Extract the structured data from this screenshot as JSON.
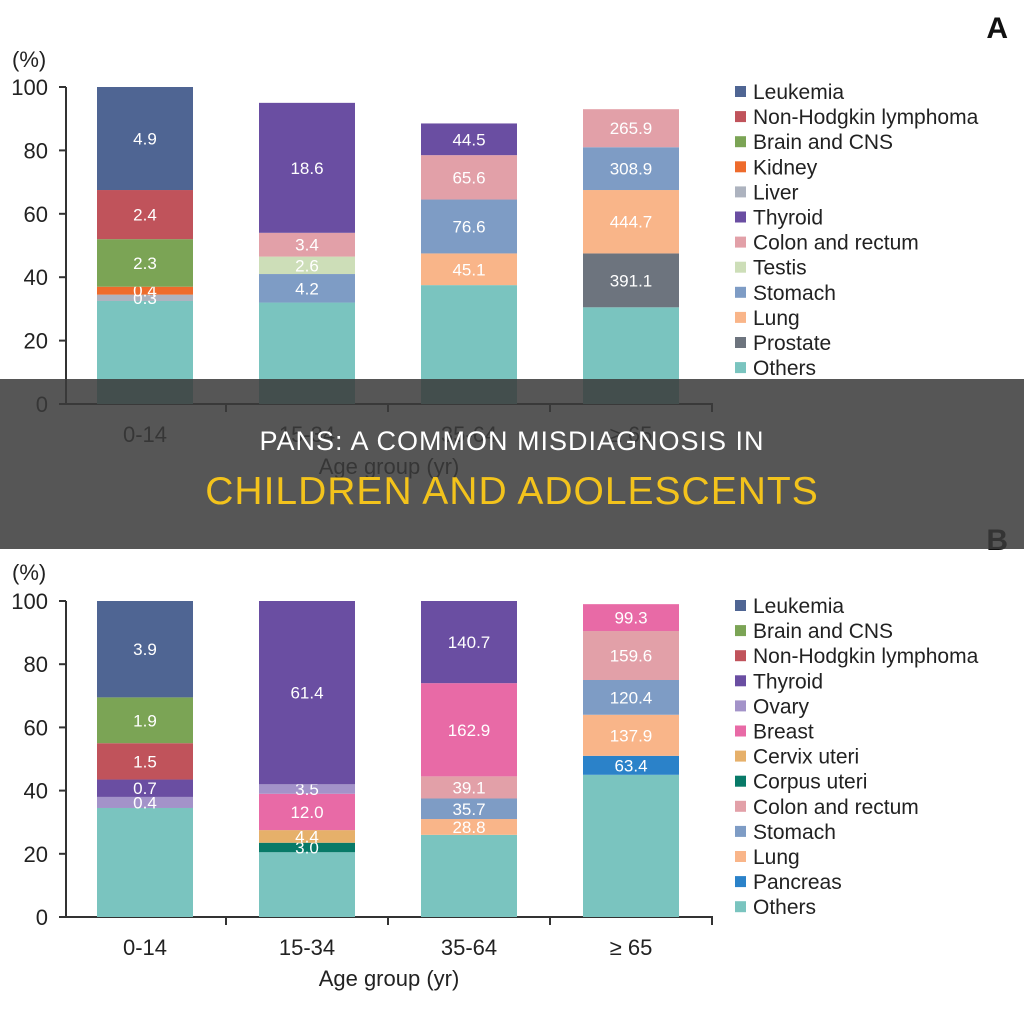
{
  "banner": {
    "line1": "PANS: A COMMON MISDIAGNOSIS IN",
    "line2": "CHILDREN AND ADOLESCENTS",
    "line2_color": "#f3c31c"
  },
  "chart_data": [
    {
      "panel": "A",
      "type": "bar",
      "stacked": true,
      "categories": [
        "0-14",
        "15-34",
        "35-64",
        "≥ 65"
      ],
      "ylabel": "(%)",
      "xlabel": "Age group (yr)",
      "ylim": [
        0,
        100
      ],
      "yticks": [
        0,
        20,
        40,
        60,
        80,
        100
      ],
      "legend_position": "right",
      "series": [
        {
          "name": "Leukemia",
          "color": "#4f6593",
          "values": [
            32.5,
            0,
            0,
            0
          ],
          "labels": [
            "4.9",
            "",
            "",
            ""
          ]
        },
        {
          "name": "Non-Hodgkin lymphoma",
          "color": "#c0535b",
          "values": [
            15.5,
            0,
            0,
            0
          ],
          "labels": [
            "2.4",
            "",
            "",
            ""
          ]
        },
        {
          "name": "Brain and CNS",
          "color": "#7ba455",
          "values": [
            15,
            0,
            0,
            0
          ],
          "labels": [
            "2.3",
            "",
            "",
            ""
          ]
        },
        {
          "name": "Kidney",
          "color": "#ee6b2c",
          "values": [
            2.5,
            0,
            0,
            0
          ],
          "labels": [
            "0.4",
            "",
            "",
            ""
          ]
        },
        {
          "name": "Liver",
          "color": "#adb3bf",
          "values": [
            2,
            0,
            0,
            0
          ],
          "labels": [
            "0.3",
            "",
            "",
            ""
          ]
        },
        {
          "name": "Thyroid",
          "color": "#6a4ea2",
          "values": [
            0,
            41,
            10,
            0
          ],
          "labels": [
            "",
            "18.6",
            "44.5",
            ""
          ]
        },
        {
          "name": "Colon and rectum",
          "color": "#e2a0a8",
          "values": [
            0,
            7.5,
            14,
            12
          ],
          "labels": [
            "",
            "3.4",
            "65.6",
            "265.9"
          ]
        },
        {
          "name": "Testis",
          "color": "#cddeb8",
          "values": [
            0,
            5.5,
            0,
            0
          ],
          "labels": [
            "",
            "2.6",
            "",
            ""
          ]
        },
        {
          "name": "Stomach",
          "color": "#7e9cc5",
          "values": [
            0,
            9,
            17,
            13.5
          ],
          "labels": [
            "",
            "4.2",
            "76.6",
            "308.9"
          ]
        },
        {
          "name": "Lung",
          "color": "#f9b589",
          "values": [
            0,
            0,
            10,
            20
          ],
          "labels": [
            "",
            "",
            "45.1",
            "444.7"
          ]
        },
        {
          "name": "Prostate",
          "color": "#6d747e",
          "values": [
            0,
            0,
            0,
            17
          ],
          "labels": [
            "",
            "",
            "",
            "391.1"
          ]
        },
        {
          "name": "Others",
          "color": "#7ac4bf",
          "values": [
            32.5,
            32,
            37.5,
            30.5
          ],
          "labels": [
            "",
            "",
            "",
            ""
          ]
        }
      ]
    },
    {
      "panel": "B",
      "type": "bar",
      "stacked": true,
      "categories": [
        "0-14",
        "15-34",
        "35-64",
        "≥ 65"
      ],
      "ylabel": "(%)",
      "xlabel": "Age group (yr)",
      "ylim": [
        0,
        100
      ],
      "yticks": [
        0,
        20,
        40,
        60,
        80,
        100
      ],
      "legend_position": "right",
      "series": [
        {
          "name": "Leukemia",
          "color": "#4f6593",
          "values": [
            30.5,
            0,
            0,
            0
          ],
          "labels": [
            "3.9",
            "",
            "",
            ""
          ]
        },
        {
          "name": "Brain and CNS",
          "color": "#7ba455",
          "values": [
            14.5,
            0,
            0,
            0
          ],
          "labels": [
            "1.9",
            "",
            "",
            ""
          ]
        },
        {
          "name": "Non-Hodgkin lymphoma",
          "color": "#c0535b",
          "values": [
            11.5,
            0,
            0,
            0
          ],
          "labels": [
            "1.5",
            "",
            "",
            ""
          ]
        },
        {
          "name": "Thyroid",
          "color": "#6a4ea2",
          "values": [
            5.5,
            58,
            26,
            0
          ],
          "labels": [
            "0.7",
            "61.4",
            "140.7",
            ""
          ]
        },
        {
          "name": "Ovary",
          "color": "#a393c9",
          "values": [
            3.5,
            3,
            0,
            0
          ],
          "labels": [
            "0.4",
            "3.5",
            "",
            ""
          ]
        },
        {
          "name": "Breast",
          "color": "#e86aa6",
          "values": [
            0,
            11.5,
            29.5,
            8.5
          ],
          "labels": [
            "",
            "12.0",
            "162.9",
            "99.3"
          ]
        },
        {
          "name": "Cervix uteri",
          "color": "#e6b06a",
          "values": [
            0,
            4,
            0,
            0
          ],
          "labels": [
            "",
            "4.4",
            "",
            ""
          ]
        },
        {
          "name": "Corpus uteri",
          "color": "#087a68",
          "values": [
            0,
            3,
            0,
            0
          ],
          "labels": [
            "",
            "3.0",
            "",
            ""
          ]
        },
        {
          "name": "Colon and rectum",
          "color": "#e2a0a8",
          "values": [
            0,
            0,
            7,
            15.5
          ],
          "labels": [
            "",
            "",
            "39.1",
            ""
          ]
        },
        {
          "name": "Stomach",
          "color": "#7e9cc5",
          "values": [
            0,
            0,
            6.5,
            11
          ],
          "labels": [
            "",
            "",
            "35.7",
            "120.4"
          ]
        },
        {
          "name": "Lung",
          "color": "#f9b589",
          "values": [
            0,
            0,
            5,
            13
          ],
          "labels": [
            "",
            "",
            "28.8",
            "137.9"
          ]
        },
        {
          "name": "Pancreas",
          "color": "#2b82c9",
          "values": [
            0,
            0,
            0,
            6
          ],
          "labels": [
            "",
            "",
            "",
            "63.4"
          ]
        },
        {
          "name": "Others",
          "color": "#7ac4bf",
          "values": [
            34.5,
            20.5,
            26,
            45
          ],
          "labels": [
            "",
            "",
            "",
            ""
          ]
        }
      ],
      "extra_labels": [
        {
          "category_index": 3,
          "series": "Colon and rectum",
          "text": "159.6"
        }
      ]
    }
  ],
  "panel_letters": [
    "A",
    "B"
  ]
}
